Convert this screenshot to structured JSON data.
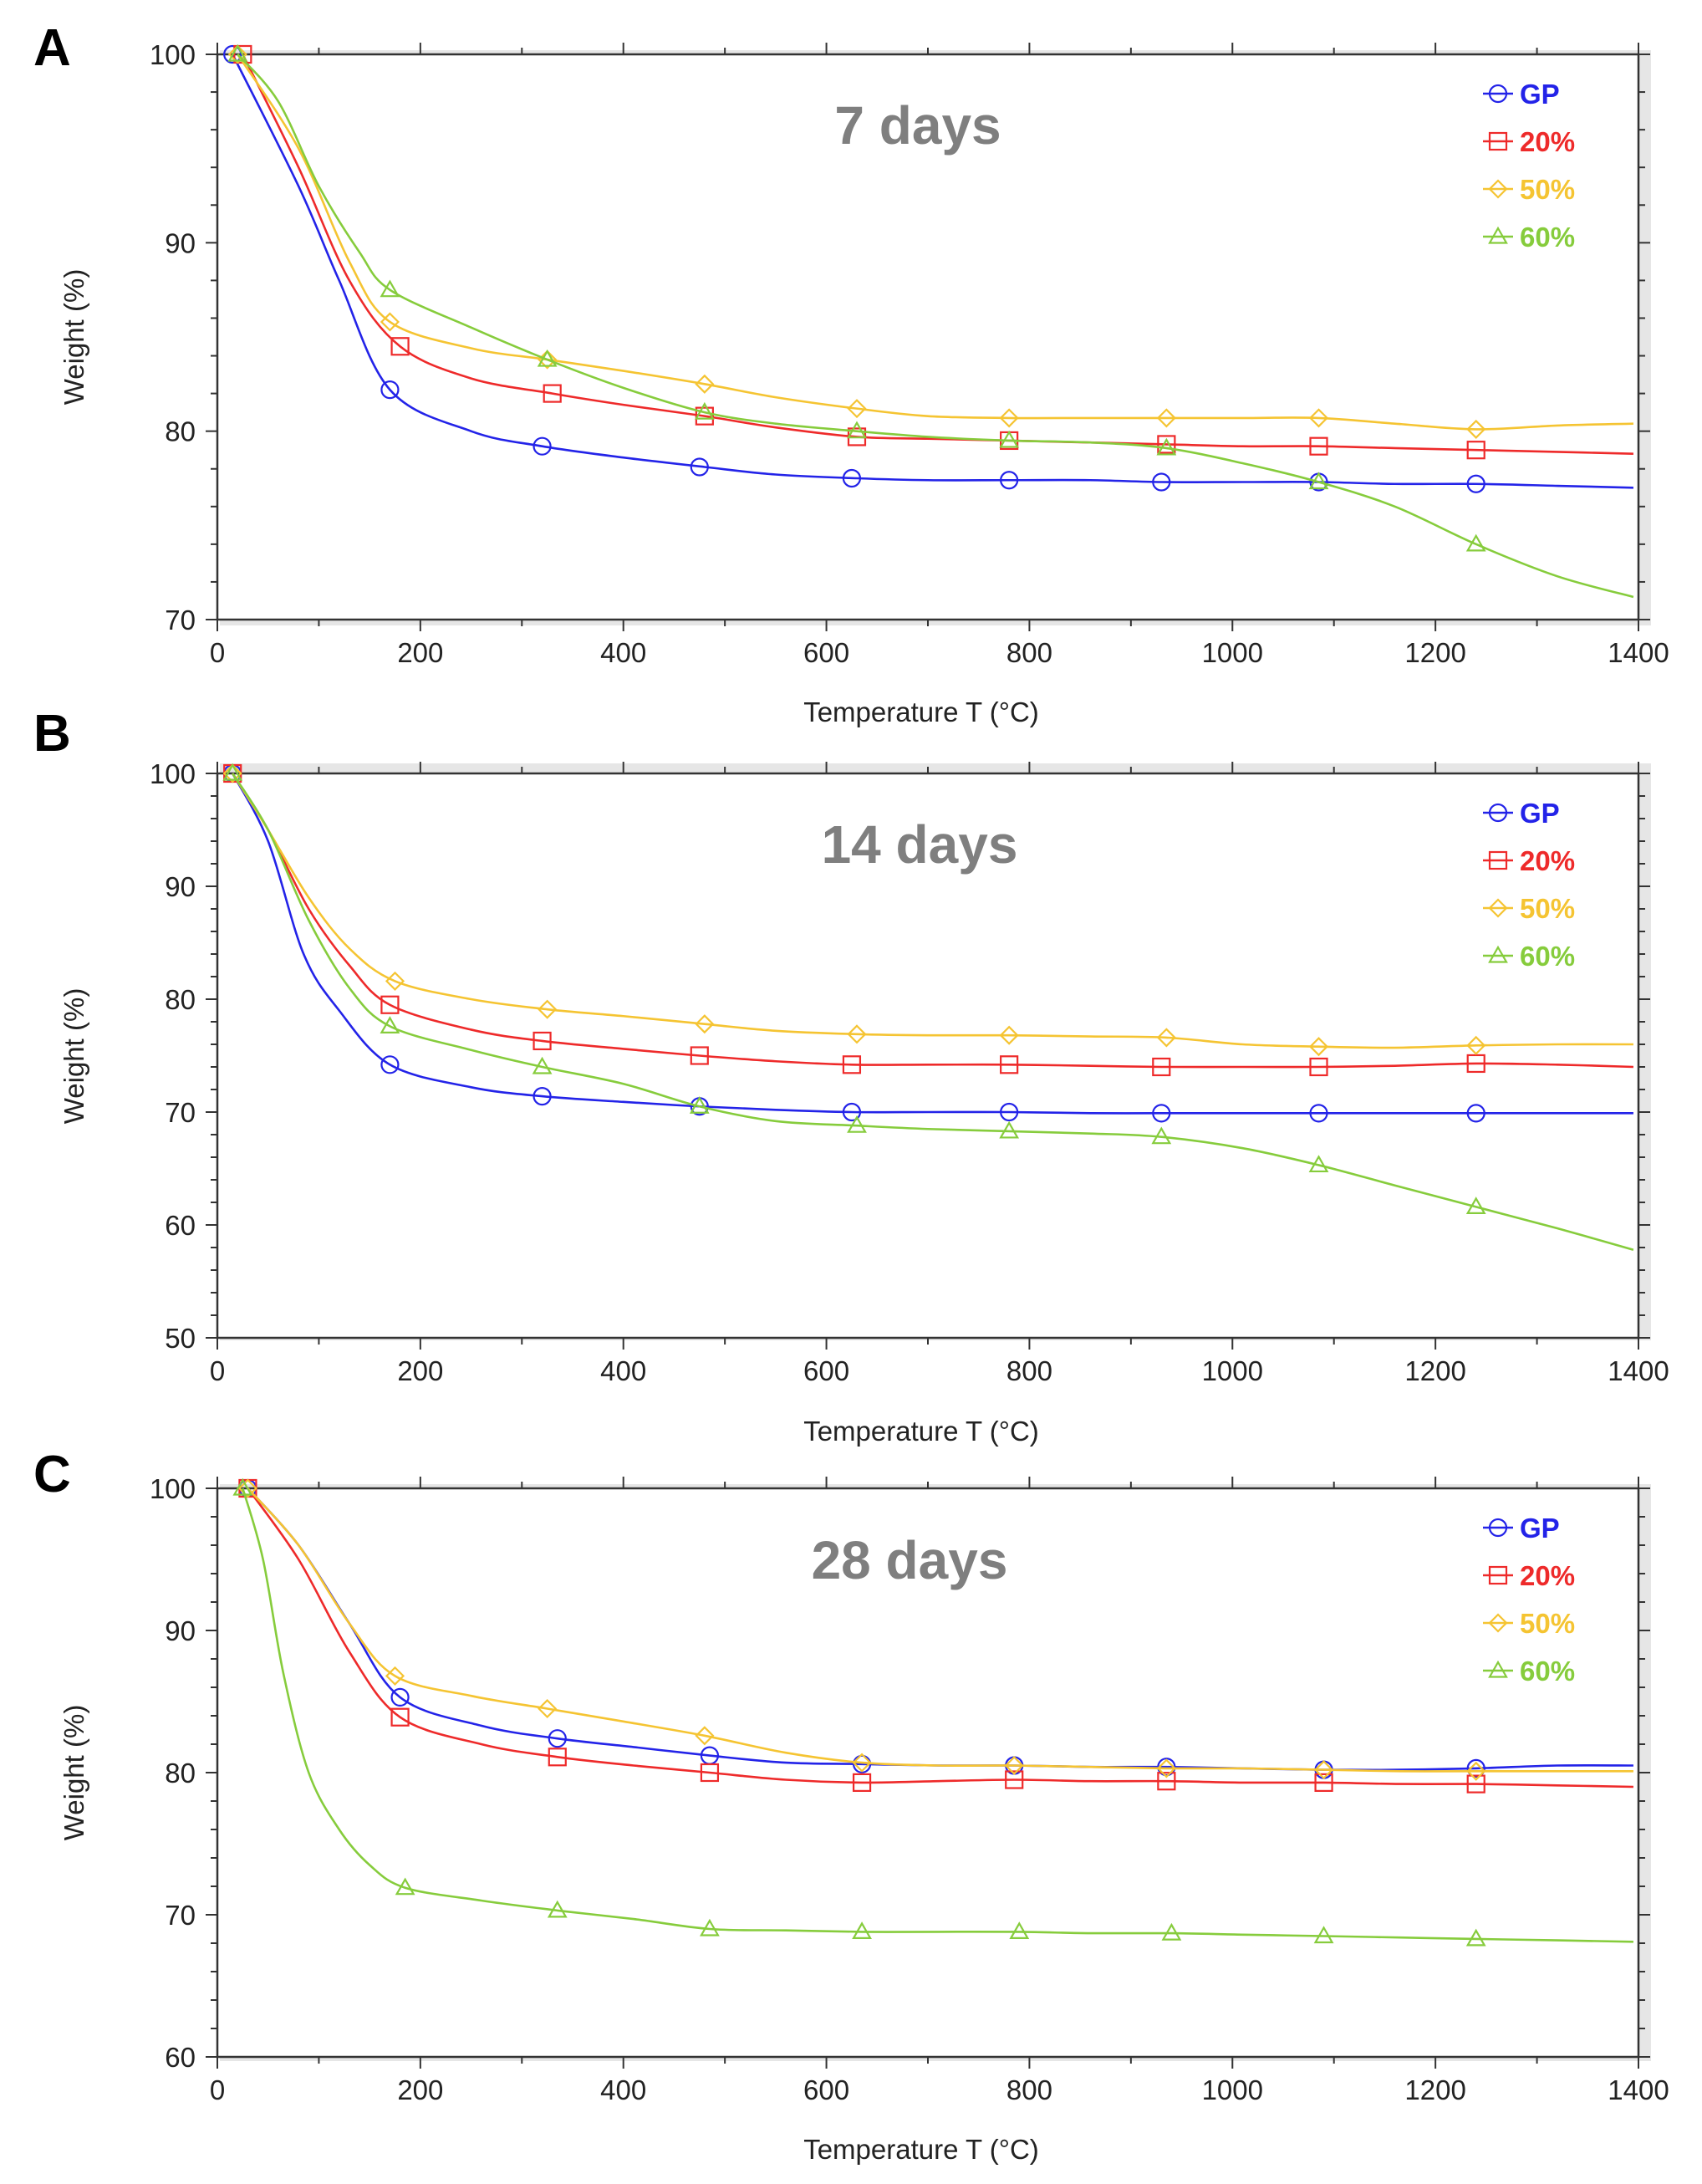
{
  "colors": {
    "GP": "#2323e8",
    "20%": "#ee2a2a",
    "50%": "#f5c432",
    "60%": "#86cc3c"
  },
  "chart_data": [
    {
      "panel": "A",
      "type": "line",
      "title": "7 days",
      "xlabel": "Temperature T (°C)",
      "ylabel": "Weight (%)",
      "xlim": [
        0,
        1400
      ],
      "ylim": [
        70,
        100
      ],
      "xticks": [
        0,
        200,
        400,
        600,
        800,
        1000,
        1200,
        1400
      ],
      "yticks": [
        70,
        80,
        90,
        100
      ],
      "legend": "top-right",
      "series": [
        {
          "name": "GP",
          "marker": "circle",
          "x": [
            15,
            80,
            120,
            170,
            250,
            320,
            400,
            480,
            550,
            630,
            700,
            780,
            860,
            930,
            1010,
            1085,
            1160,
            1240,
            1320,
            1395
          ],
          "y": [
            100,
            93,
            88,
            82.2,
            80,
            79.2,
            78.6,
            78.1,
            77.7,
            77.5,
            77.4,
            77.4,
            77.4,
            77.3,
            77.3,
            77.3,
            77.2,
            77.2,
            77.1,
            77.0
          ],
          "markers_x": [
            15,
            170,
            320,
            475,
            625,
            780,
            930,
            1085,
            1240
          ],
          "markers_y": [
            100,
            82.2,
            79.2,
            78.1,
            77.5,
            77.4,
            77.3,
            77.3,
            77.2
          ]
        },
        {
          "name": "20%",
          "marker": "square",
          "x": [
            25,
            80,
            130,
            180,
            250,
            330,
            400,
            480,
            550,
            630,
            700,
            780,
            860,
            935,
            1010,
            1085,
            1160,
            1240,
            1320,
            1395
          ],
          "y": [
            100,
            94,
            88,
            84.5,
            82.8,
            82,
            81.4,
            80.8,
            80.2,
            79.7,
            79.6,
            79.5,
            79.4,
            79.3,
            79.2,
            79.2,
            79.1,
            79.0,
            78.9,
            78.8
          ],
          "markers_x": [
            25,
            180,
            330,
            480,
            630,
            780,
            935,
            1085,
            1240
          ],
          "markers_y": [
            100,
            84.5,
            82,
            80.8,
            79.7,
            79.5,
            79.3,
            79.2,
            79.0
          ]
        },
        {
          "name": "50%",
          "marker": "diamond",
          "x": [
            20,
            80,
            130,
            170,
            250,
            325,
            400,
            480,
            550,
            630,
            700,
            780,
            860,
            935,
            1010,
            1085,
            1160,
            1240,
            1320,
            1395
          ],
          "y": [
            100,
            95,
            89,
            85.8,
            84.4,
            83.8,
            83.2,
            82.5,
            81.8,
            81.2,
            80.8,
            80.7,
            80.7,
            80.7,
            80.7,
            80.7,
            80.4,
            80.1,
            80.3,
            80.4
          ],
          "markers_x": [
            20,
            170,
            325,
            480,
            630,
            780,
            935,
            1085,
            1240
          ],
          "markers_y": [
            100,
            85.8,
            83.8,
            82.5,
            81.2,
            80.7,
            80.7,
            80.7,
            80.1
          ]
        },
        {
          "name": "60%",
          "marker": "triangle",
          "x": [
            20,
            60,
            100,
            140,
            170,
            250,
            325,
            400,
            480,
            550,
            630,
            700,
            780,
            860,
            935,
            1010,
            1085,
            1160,
            1240,
            1320,
            1395
          ],
          "y": [
            100,
            97.5,
            93,
            89.5,
            87.5,
            85.5,
            83.8,
            82.3,
            81.0,
            80.4,
            80.0,
            79.7,
            79.5,
            79.4,
            79.1,
            78.3,
            77.3,
            76.0,
            74.0,
            72.3,
            71.2
          ],
          "markers_x": [
            20,
            170,
            325,
            480,
            630,
            780,
            935,
            1085,
            1240
          ],
          "markers_y": [
            100,
            87.5,
            83.8,
            81.0,
            80.0,
            79.5,
            79.1,
            77.3,
            74.0
          ]
        }
      ]
    },
    {
      "panel": "B",
      "type": "line",
      "title": "14 days",
      "xlabel": "Temperature T (°C)",
      "ylabel": "Weight (%)",
      "xlim": [
        0,
        1400
      ],
      "ylim": [
        50,
        100
      ],
      "xticks": [
        0,
        200,
        400,
        600,
        800,
        1000,
        1200,
        1400
      ],
      "yticks": [
        50,
        60,
        70,
        80,
        90,
        100
      ],
      "legend": "top-right",
      "series": [
        {
          "name": "GP",
          "marker": "circle",
          "x": [
            15,
            50,
            85,
            120,
            170,
            250,
            320,
            400,
            475,
            550,
            625,
            700,
            780,
            860,
            930,
            1010,
            1085,
            1160,
            1240,
            1320,
            1395
          ],
          "y": [
            100,
            94,
            84,
            79,
            74.2,
            72.2,
            71.4,
            70.9,
            70.5,
            70.2,
            70.0,
            70.0,
            70.0,
            69.9,
            69.9,
            69.9,
            69.9,
            69.9,
            69.9,
            69.9,
            69.9
          ],
          "markers_x": [
            15,
            170,
            320,
            475,
            625,
            780,
            930,
            1085,
            1240
          ],
          "markers_y": [
            100,
            74.2,
            71.4,
            70.5,
            70.0,
            70.0,
            69.9,
            69.9,
            69.9
          ]
        },
        {
          "name": "20%",
          "marker": "square",
          "x": [
            15,
            50,
            90,
            130,
            170,
            250,
            320,
            400,
            475,
            550,
            625,
            700,
            780,
            860,
            930,
            1010,
            1085,
            1160,
            1240,
            1320,
            1395
          ],
          "y": [
            100,
            95,
            88,
            83,
            79.5,
            77.3,
            76.3,
            75.6,
            75.0,
            74.5,
            74.2,
            74.2,
            74.2,
            74.1,
            74.0,
            74.0,
            74.0,
            74.1,
            74.3,
            74.2,
            74.0
          ],
          "markers_x": [
            15,
            170,
            320,
            475,
            625,
            780,
            930,
            1085,
            1240
          ],
          "markers_y": [
            100,
            79.5,
            76.3,
            75.0,
            74.2,
            74.2,
            74.0,
            74.0,
            74.3
          ]
        },
        {
          "name": "50%",
          "marker": "diamond",
          "x": [
            15,
            50,
            90,
            130,
            175,
            250,
            325,
            400,
            480,
            550,
            630,
            700,
            780,
            860,
            935,
            1010,
            1085,
            1160,
            1240,
            1320,
            1395
          ],
          "y": [
            100,
            95,
            89,
            84.5,
            81.6,
            80.0,
            79.1,
            78.5,
            77.8,
            77.2,
            76.9,
            76.8,
            76.8,
            76.7,
            76.6,
            76.0,
            75.8,
            75.7,
            75.9,
            76.0,
            76.0
          ],
          "markers_x": [
            15,
            175,
            325,
            480,
            630,
            780,
            935,
            1085,
            1240
          ],
          "markers_y": [
            100,
            81.6,
            79.1,
            77.8,
            76.9,
            76.8,
            76.6,
            75.8,
            75.9
          ]
        },
        {
          "name": "60%",
          "marker": "triangle",
          "x": [
            15,
            50,
            90,
            130,
            170,
            250,
            320,
            400,
            475,
            550,
            630,
            700,
            780,
            860,
            930,
            1010,
            1085,
            1160,
            1240,
            1320,
            1395
          ],
          "y": [
            100,
            95,
            87,
            81,
            77.6,
            75.5,
            74.0,
            72.5,
            70.5,
            69.2,
            68.8,
            68.5,
            68.3,
            68.1,
            67.8,
            66.8,
            65.3,
            63.5,
            61.6,
            59.7,
            57.8
          ],
          "markers_x": [
            15,
            170,
            320,
            475,
            630,
            780,
            930,
            1085,
            1240
          ],
          "markers_y": [
            100,
            77.6,
            74.0,
            70.5,
            68.8,
            68.3,
            67.8,
            65.3,
            61.6
          ]
        }
      ]
    },
    {
      "panel": "C",
      "type": "line",
      "title": "28 days",
      "xlabel": "Temperature T (°C)",
      "ylabel": "Weight (%)",
      "xlim": [
        0,
        1400
      ],
      "ylim": [
        60,
        100
      ],
      "xticks": [
        0,
        200,
        400,
        600,
        800,
        1000,
        1200,
        1400
      ],
      "yticks": [
        60,
        70,
        80,
        90,
        100
      ],
      "legend": "top-right",
      "series": [
        {
          "name": "GP",
          "marker": "circle",
          "x": [
            30,
            80,
            130,
            180,
            260,
            335,
            410,
            485,
            560,
            635,
            710,
            785,
            860,
            935,
            1010,
            1090,
            1165,
            1240,
            1320,
            1395
          ],
          "y": [
            100,
            96,
            90.5,
            85.3,
            83.3,
            82.4,
            81.8,
            81.2,
            80.7,
            80.6,
            80.5,
            80.5,
            80.4,
            80.4,
            80.3,
            80.2,
            80.2,
            80.3,
            80.5,
            80.5
          ],
          "markers_x": [
            30,
            180,
            335,
            485,
            635,
            785,
            935,
            1090,
            1240
          ],
          "markers_y": [
            100,
            85.3,
            82.4,
            81.2,
            80.6,
            80.5,
            80.4,
            80.2,
            80.3
          ]
        },
        {
          "name": "20%",
          "marker": "square",
          "x": [
            30,
            80,
            130,
            180,
            260,
            335,
            410,
            485,
            560,
            635,
            710,
            785,
            860,
            935,
            1010,
            1090,
            1165,
            1240,
            1320,
            1395
          ],
          "y": [
            100,
            95,
            88.5,
            83.9,
            82.0,
            81.1,
            80.5,
            80.0,
            79.5,
            79.3,
            79.4,
            79.5,
            79.4,
            79.4,
            79.3,
            79.3,
            79.2,
            79.2,
            79.1,
            79.0
          ],
          "markers_x": [
            30,
            180,
            335,
            485,
            635,
            785,
            935,
            1090,
            1240
          ],
          "markers_y": [
            100,
            83.9,
            81.1,
            80.0,
            79.3,
            79.5,
            79.4,
            79.3,
            79.2
          ]
        },
        {
          "name": "50%",
          "marker": "diamond",
          "x": [
            30,
            80,
            130,
            175,
            250,
            325,
            400,
            480,
            560,
            635,
            710,
            785,
            860,
            935,
            1010,
            1090,
            1165,
            1240,
            1320,
            1395
          ],
          "y": [
            100,
            96,
            90.5,
            86.8,
            85.4,
            84.5,
            83.6,
            82.6,
            81.4,
            80.7,
            80.5,
            80.5,
            80.4,
            80.3,
            80.3,
            80.2,
            80.1,
            80.1,
            80.1,
            80.1
          ],
          "markers_x": [
            30,
            175,
            325,
            480,
            635,
            785,
            935,
            1090,
            1240
          ],
          "markers_y": [
            100,
            86.8,
            84.5,
            82.6,
            80.7,
            80.5,
            80.3,
            80.2,
            80.1
          ]
        },
        {
          "name": "60%",
          "marker": "triangle",
          "x": [
            25,
            45,
            65,
            90,
            120,
            150,
            185,
            260,
            335,
            410,
            485,
            560,
            635,
            710,
            790,
            860,
            940,
            1010,
            1090,
            1165,
            1240,
            1320,
            1395
          ],
          "y": [
            100,
            95,
            87,
            80,
            76,
            73.5,
            71.9,
            71.0,
            70.3,
            69.7,
            69.0,
            68.9,
            68.8,
            68.8,
            68.8,
            68.7,
            68.7,
            68.6,
            68.5,
            68.4,
            68.3,
            68.2,
            68.1
          ],
          "markers_x": [
            25,
            185,
            335,
            485,
            635,
            790,
            940,
            1090,
            1240
          ],
          "markers_y": [
            100,
            71.9,
            70.3,
            69.0,
            68.8,
            68.8,
            68.7,
            68.5,
            68.3
          ]
        }
      ]
    }
  ]
}
